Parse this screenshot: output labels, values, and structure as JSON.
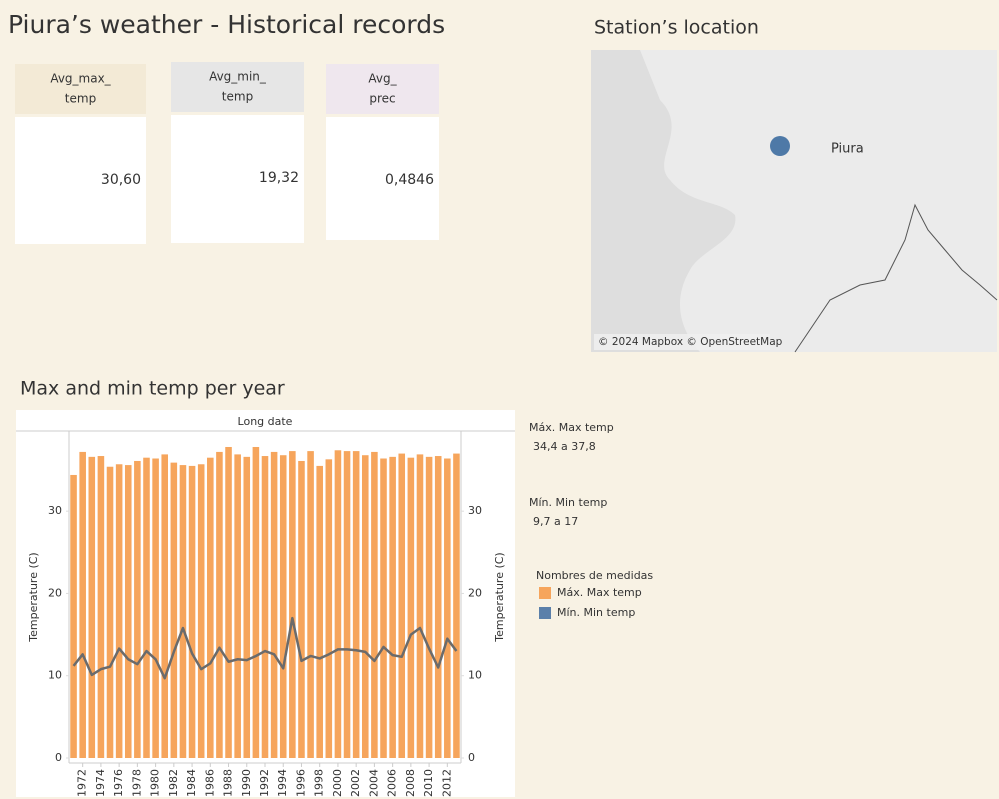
{
  "header": {
    "title": "Piura’s weather - Historical records"
  },
  "cards": [
    {
      "label": [
        "Avg_max_",
        "temp"
      ],
      "value": "30,60",
      "header_color": "#f3ead6"
    },
    {
      "label": [
        "Avg_min_",
        "temp"
      ],
      "value": "19,32",
      "header_color": "#e6e6e6"
    },
    {
      "label": [
        "Avg_",
        "prec"
      ],
      "value": "0,4846",
      "header_color": "#efe7ee"
    }
  ],
  "map": {
    "title": "Station’s location",
    "place": "Piura",
    "attribution": "© 2024 Mapbox © OpenStreetMap"
  },
  "filters": [
    {
      "name": "Máx. Max temp",
      "range": "34,4 a 37,8"
    },
    {
      "name": "Mín. Min temp",
      "range": "9,7 a 17"
    }
  ],
  "chart_data": {
    "type": "bar_line",
    "title": "Max and min temp per year",
    "header": "Long date",
    "ylabel": "Temperature (C)",
    "y2label": "Temperature (C)",
    "legend_title": "Nombres de medidas",
    "x": [
      1971,
      1972,
      1973,
      1974,
      1975,
      1976,
      1977,
      1978,
      1979,
      1980,
      1981,
      1982,
      1983,
      1984,
      1985,
      1986,
      1987,
      1988,
      1989,
      1990,
      1991,
      1992,
      1993,
      1994,
      1995,
      1996,
      1997,
      1998,
      1999,
      2000,
      2001,
      2002,
      2003,
      2004,
      2005,
      2006,
      2007,
      2008,
      2009,
      2010,
      2011,
      2012,
      2013
    ],
    "xlim": [
      1970.5,
      2013.5
    ],
    "xticks": [
      1972,
      1974,
      1976,
      1978,
      1980,
      1982,
      1984,
      1986,
      1988,
      1990,
      1992,
      1994,
      1996,
      1998,
      2000,
      2002,
      2004,
      2006,
      2008,
      2010,
      2012
    ],
    "ylim": [
      0,
      39.5
    ],
    "yticks": [
      0,
      10,
      20,
      30
    ],
    "y2lim": [
      0,
      39.5
    ],
    "y2ticks": [
      0,
      10,
      20,
      30
    ],
    "grid": false,
    "series": [
      {
        "name": "Máx. Max temp",
        "color": "#f6a55c",
        "values": [
          34.4,
          37.2,
          36.6,
          36.7,
          35.4,
          35.7,
          35.6,
          36.1,
          36.5,
          36.4,
          36.9,
          35.9,
          35.6,
          35.5,
          35.7,
          36.5,
          37.2,
          37.8,
          36.9,
          36.6,
          37.8,
          36.7,
          37.2,
          36.8,
          37.3,
          36.1,
          37.3,
          35.5,
          36.3,
          37.4,
          37.3,
          37.3,
          36.8,
          37.2,
          36.4,
          36.6,
          37.0,
          36.5,
          36.9,
          36.6,
          36.7,
          36.4,
          37.0
        ]
      },
      {
        "name": "Mín. Min temp",
        "color": "#5b80aa",
        "line_color": "#6b6b6b",
        "axis": "y2",
        "values": [
          11.2,
          12.6,
          10.1,
          10.8,
          11.1,
          13.3,
          12.0,
          11.4,
          13.0,
          12.0,
          9.7,
          12.9,
          15.8,
          12.7,
          10.8,
          11.5,
          13.4,
          11.7,
          12.0,
          11.9,
          12.4,
          13.0,
          12.6,
          10.9,
          17.0,
          11.8,
          12.4,
          12.1,
          12.6,
          13.2,
          13.2,
          13.1,
          12.9,
          11.8,
          13.5,
          12.5,
          12.3,
          15.0,
          15.8,
          13.3,
          11.0,
          14.5,
          13.0
        ]
      }
    ]
  }
}
